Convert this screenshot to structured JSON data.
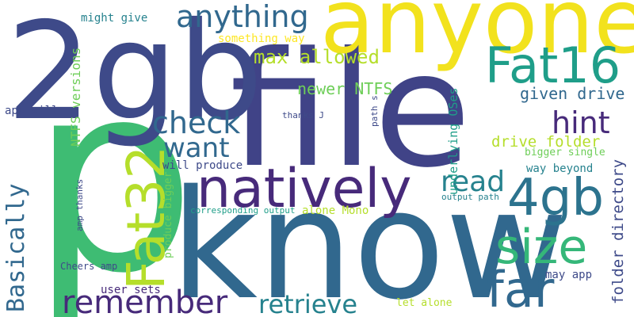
{
  "palette": {
    "dark_purple": "#472a7a",
    "indigo": "#3e4a89",
    "blue": "#31688e",
    "teal": "#26828e",
    "green": "#1f9e89",
    "emerald": "#35b779",
    "lime": "#6ece58",
    "yellow_green": "#b5de2b",
    "yellow": "#fde725"
  },
  "words": {
    "p": "p",
    "file": "file",
    "know": "know",
    "two_gb": "2gb",
    "anyone": "anyone",
    "natively": "natively",
    "fat32": "Fat32",
    "fat16": "Fat16",
    "four_gb": "4gb",
    "size": "size",
    "far": "far",
    "check": "check",
    "want": "want",
    "anything": "anything",
    "hint": "hint",
    "read": "read",
    "remember": "remember",
    "retrieve": "retrieve",
    "basically": "Basically",
    "max_allowed": "max allowed",
    "newer_ntfs": "newer NTFS",
    "given_drive": "given drive",
    "drive_folder": "drive folder",
    "folder_directory": "folder directory",
    "ntfs_versions": "NTFS versions",
    "underlying_oses": "underlying OSes",
    "might_give": "might give",
    "something_way": "something way",
    "app_will": "app will",
    "thanks_j": "thanks J",
    "path_s": "path s",
    "bigger_single": "bigger single",
    "way_beyond": "way beyond",
    "will_produce": "will produce",
    "output_path": "output path",
    "corresponding_output": "corresponding output",
    "alone_mono": "alone Mono",
    "produce_bigger": "produce bigger",
    "amp_thanks": "amp thanks",
    "cheers_amp": "Cheers amp",
    "user_sets": "user sets",
    "let_alone": "let alone",
    "may_app": "may app"
  }
}
